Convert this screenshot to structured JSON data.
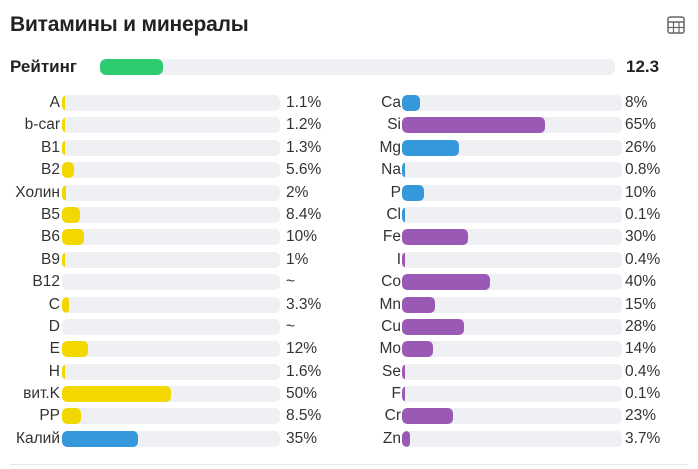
{
  "title": "Витамины и минералы",
  "rating": {
    "label": "Рейтинг",
    "value": "12.3",
    "fraction": 0.123,
    "color": "#2ecc71"
  },
  "colors": {
    "vitamin": "#f2d800",
    "mineral_blue": "#3498db",
    "mineral_purple": "#9b59b6",
    "track": "#eef0f3"
  },
  "vitamins": [
    {
      "name": "A",
      "value": "1.1%",
      "fraction": 0.011,
      "color": "#f2d800"
    },
    {
      "name": "b-car",
      "value": "1.2%",
      "fraction": 0.012,
      "color": "#f2d800"
    },
    {
      "name": "B1",
      "value": "1.3%",
      "fraction": 0.013,
      "color": "#f2d800"
    },
    {
      "name": "B2",
      "value": "5.6%",
      "fraction": 0.056,
      "color": "#f2d800"
    },
    {
      "name": "Холин",
      "value": "2%",
      "fraction": 0.02,
      "color": "#f2d800"
    },
    {
      "name": "B5",
      "value": "8.4%",
      "fraction": 0.084,
      "color": "#f2d800"
    },
    {
      "name": "B6",
      "value": "10%",
      "fraction": 0.1,
      "color": "#f2d800"
    },
    {
      "name": "B9",
      "value": "1%",
      "fraction": 0.01,
      "color": "#f2d800"
    },
    {
      "name": "B12",
      "value": "~",
      "fraction": 0,
      "color": "#f2d800"
    },
    {
      "name": "C",
      "value": "3.3%",
      "fraction": 0.033,
      "color": "#f2d800"
    },
    {
      "name": "D",
      "value": "~",
      "fraction": 0,
      "color": "#f2d800"
    },
    {
      "name": "E",
      "value": "12%",
      "fraction": 0.12,
      "color": "#f2d800"
    },
    {
      "name": "H",
      "value": "1.6%",
      "fraction": 0.016,
      "color": "#f2d800"
    },
    {
      "name": "вит.K",
      "value": "50%",
      "fraction": 0.5,
      "color": "#f2d800"
    },
    {
      "name": "PP",
      "value": "8.5%",
      "fraction": 0.085,
      "color": "#f2d800"
    },
    {
      "name": "Калий",
      "value": "35%",
      "fraction": 0.35,
      "color": "#3498db"
    }
  ],
  "minerals": [
    {
      "name": "Ca",
      "value": "8%",
      "fraction": 0.08,
      "color": "#3498db"
    },
    {
      "name": "Si",
      "value": "65%",
      "fraction": 0.65,
      "color": "#9b59b6"
    },
    {
      "name": "Mg",
      "value": "26%",
      "fraction": 0.26,
      "color": "#3498db"
    },
    {
      "name": "Na",
      "value": "0.8%",
      "fraction": 0.008,
      "color": "#3498db"
    },
    {
      "name": "P",
      "value": "10%",
      "fraction": 0.1,
      "color": "#3498db"
    },
    {
      "name": "Cl",
      "value": "0.1%",
      "fraction": 0.001,
      "color": "#3498db"
    },
    {
      "name": "Fe",
      "value": "30%",
      "fraction": 0.3,
      "color": "#9b59b6"
    },
    {
      "name": "I",
      "value": "0.4%",
      "fraction": 0.004,
      "color": "#9b59b6"
    },
    {
      "name": "Co",
      "value": "40%",
      "fraction": 0.4,
      "color": "#9b59b6"
    },
    {
      "name": "Mn",
      "value": "15%",
      "fraction": 0.15,
      "color": "#9b59b6"
    },
    {
      "name": "Cu",
      "value": "28%",
      "fraction": 0.28,
      "color": "#9b59b6"
    },
    {
      "name": "Mo",
      "value": "14%",
      "fraction": 0.14,
      "color": "#9b59b6"
    },
    {
      "name": "Se",
      "value": "0.4%",
      "fraction": 0.004,
      "color": "#9b59b6"
    },
    {
      "name": "F",
      "value": "0.1%",
      "fraction": 0.001,
      "color": "#9b59b6"
    },
    {
      "name": "Cr",
      "value": "23%",
      "fraction": 0.23,
      "color": "#9b59b6"
    },
    {
      "name": "Zn",
      "value": "3.7%",
      "fraction": 0.037,
      "color": "#9b59b6"
    }
  ]
}
